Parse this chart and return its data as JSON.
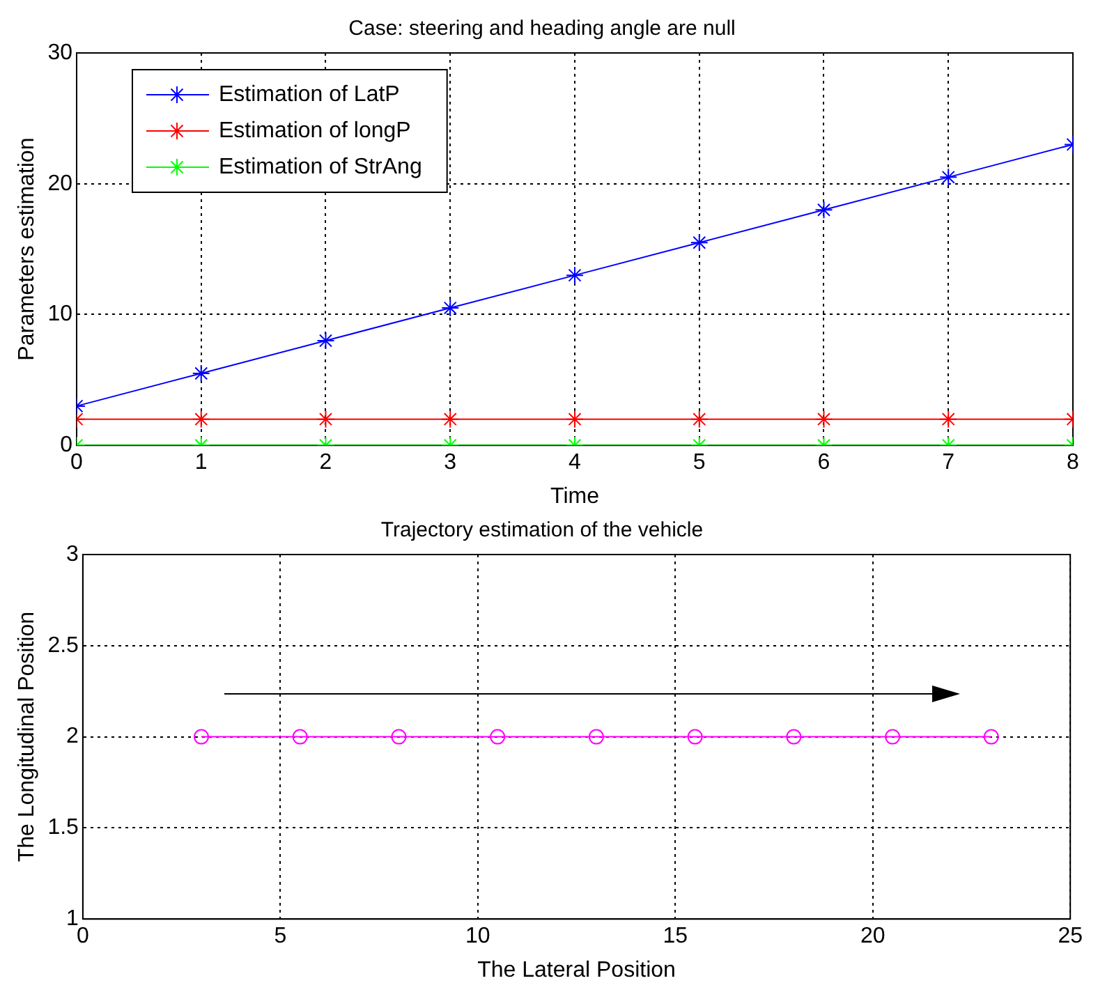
{
  "chart_data": [
    {
      "type": "line",
      "title": "Case: steering and heading angle are null",
      "xlabel": "Time",
      "ylabel": "Parameters estimation",
      "x": [
        0,
        1,
        2,
        3,
        4,
        5,
        6,
        7,
        8
      ],
      "series": [
        {
          "name": "Estimation of LatP",
          "color": "#0000ff",
          "values": [
            3,
            5.5,
            8,
            10.5,
            13,
            15.5,
            18,
            20.5,
            23
          ]
        },
        {
          "name": "Estimation of longP",
          "color": "#ff0000",
          "values": [
            2,
            2,
            2,
            2,
            2,
            2,
            2,
            2,
            2
          ]
        },
        {
          "name": "Estimation of StrAng",
          "color": "#00ff00",
          "values": [
            0,
            0,
            0,
            0,
            0,
            0,
            0,
            0,
            0
          ]
        }
      ],
      "xlim": [
        0,
        8
      ],
      "xticks": [
        0,
        1,
        2,
        3,
        4,
        5,
        6,
        7,
        8
      ],
      "ylim": [
        0,
        30
      ],
      "yticks": [
        0,
        10,
        20,
        30
      ],
      "grid": true,
      "legend": "top left",
      "marker": "cross",
      "line_style": "solid"
    },
    {
      "type": "line",
      "title": "Trajectory estimation of the vehicle",
      "xlabel": "The Lateral Position",
      "ylabel": "The Longitudinal Position",
      "x": [
        3,
        5.5,
        8,
        10.5,
        13,
        15.5,
        18,
        20.5,
        23
      ],
      "series": [
        {
          "color": "#ff00ff",
          "values": [
            2,
            2,
            2,
            2,
            2,
            2,
            2,
            2,
            2
          ]
        }
      ],
      "xlim": [
        0,
        25
      ],
      "xticks": [
        0,
        5,
        10,
        15,
        20,
        25
      ],
      "ylim": [
        1,
        3
      ],
      "yticks": [
        1,
        1.5,
        2,
        2.5,
        3
      ],
      "grid": true,
      "marker": "circle",
      "line_style": "solid"
    }
  ]
}
